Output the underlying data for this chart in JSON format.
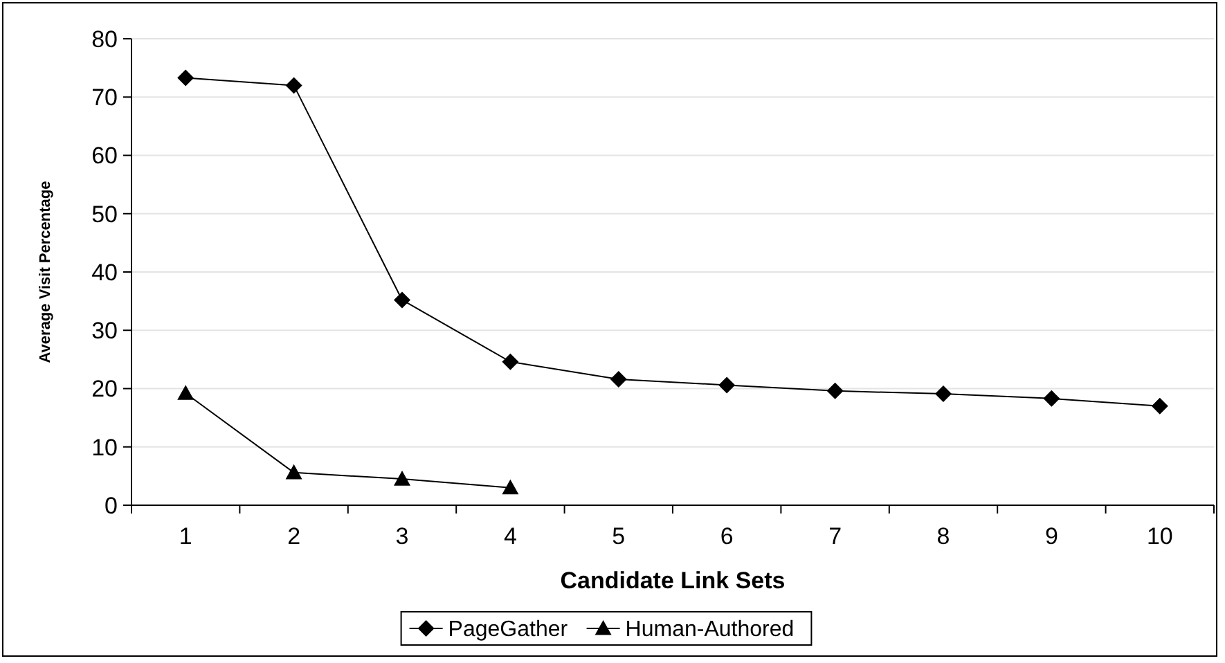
{
  "chart_data": {
    "type": "line",
    "xlabel": "Candidate Link Sets",
    "ylabel": "Average Visit Percentage",
    "categories": [
      "1",
      "2",
      "3",
      "4",
      "5",
      "6",
      "7",
      "8",
      "9",
      "10"
    ],
    "series": [
      {
        "name": "PageGather",
        "color": "#000000",
        "marker": "diamond",
        "values": [
          73.3,
          72.0,
          35.2,
          24.6,
          21.6,
          20.6,
          19.6,
          19.1,
          18.3,
          17.0
        ]
      },
      {
        "name": "Human-Authored",
        "color": "#000000",
        "marker": "triangle",
        "values": [
          19.2,
          5.6,
          4.5,
          3.0,
          null,
          null,
          null,
          null,
          null,
          null
        ]
      }
    ],
    "ylim": [
      0,
      80
    ],
    "yticks": [
      0,
      10,
      20,
      30,
      40,
      50,
      60,
      70,
      80
    ],
    "grid": "y",
    "legend": "bottom",
    "line_style": "solid"
  }
}
